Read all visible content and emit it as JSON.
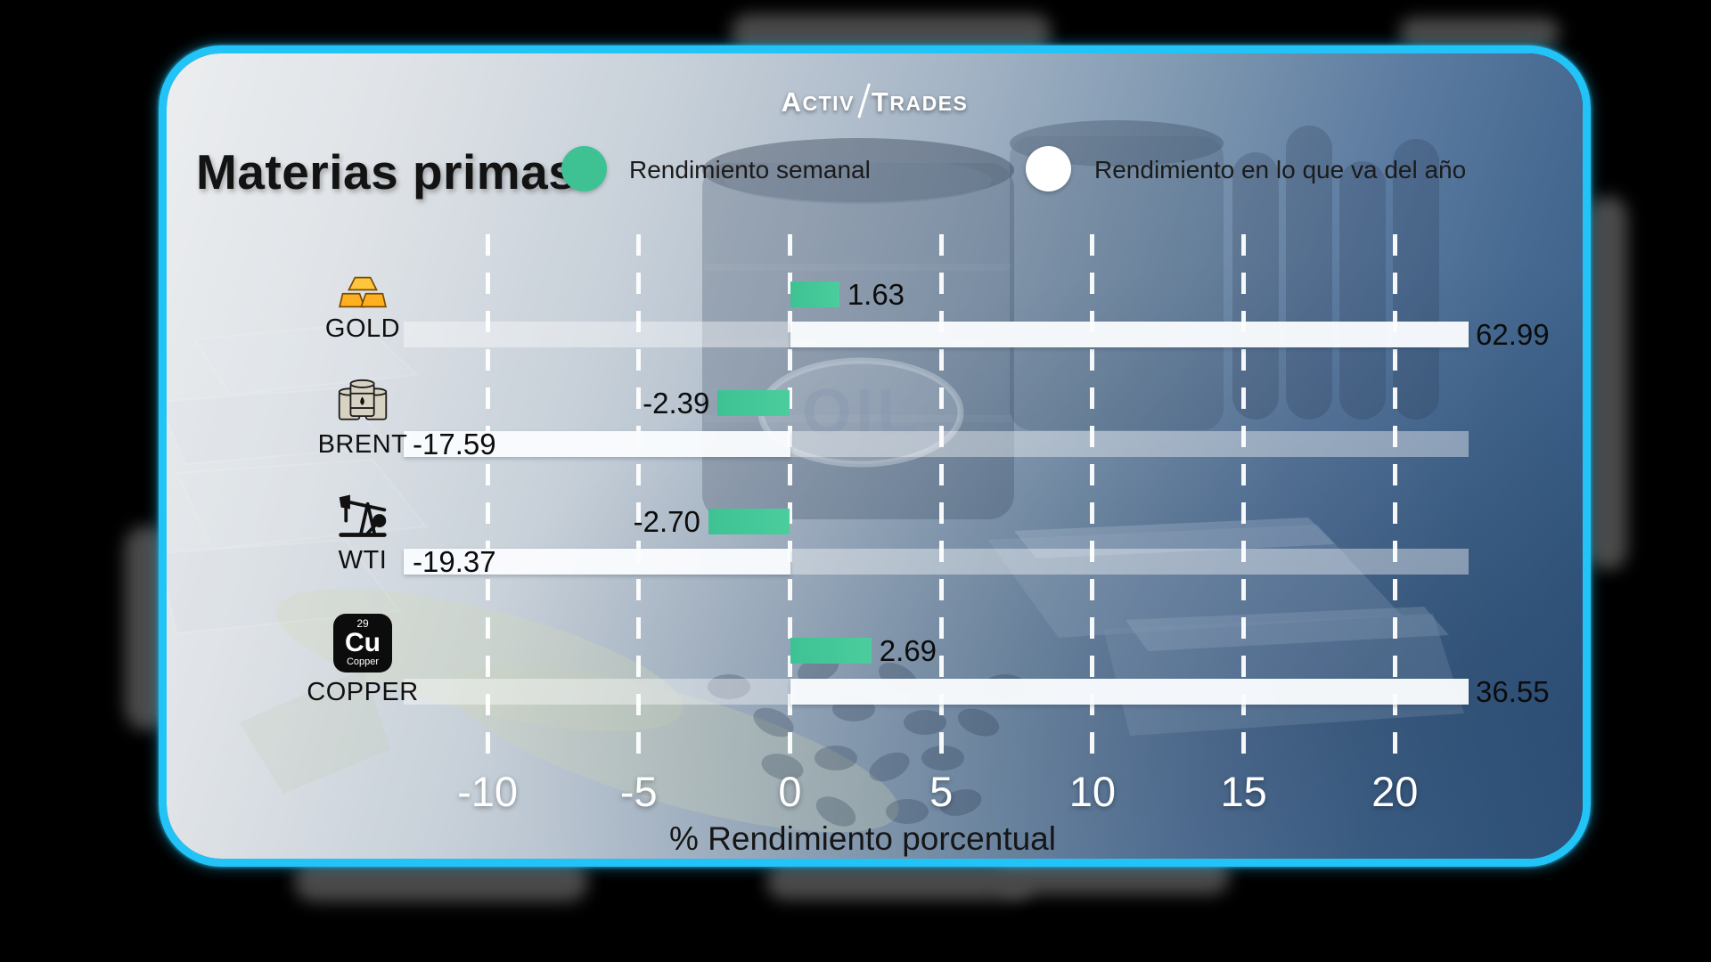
{
  "logo": {
    "a": "A",
    "ctiv": "CTIV",
    "t": "T",
    "rades": "RADES"
  },
  "header": {
    "title": "Materias primas"
  },
  "legend": {
    "weekly": {
      "label": "Rendimiento semanal",
      "color": "#3EC294"
    },
    "ytd": {
      "label": "Rendimiento en lo que va del año",
      "color": "#FFFFFF"
    }
  },
  "background": {
    "oil_label": "OIL"
  },
  "copper_chip": {
    "number": "29",
    "symbol": "Cu",
    "name": "Copper"
  },
  "chart_data": {
    "type": "bar",
    "orientation": "horizontal",
    "title": "Materias primas",
    "categories": [
      "GOLD",
      "BRENT",
      "WTI",
      "COPPER"
    ],
    "category_icons": [
      "gold-bars",
      "oil-barrels",
      "oil-pumpjack",
      "copper-element"
    ],
    "series": [
      {
        "name": "Rendimiento semanal",
        "color": "#3EC294",
        "values": [
          1.63,
          -2.39,
          -2.7,
          2.69
        ]
      },
      {
        "name": "Rendimiento en lo que va del año",
        "color": "#F4F7FA",
        "values": [
          62.99,
          -17.59,
          -19.37,
          36.55
        ]
      }
    ],
    "xlabel": "% Rendimiento porcentual",
    "x_ticks": [
      -10,
      -5,
      0,
      5,
      10,
      15,
      20
    ],
    "xlim_visible": [
      -12.8,
      22.4
    ],
    "grid": "dashed-white-vertical",
    "legend_position": "top",
    "value_labels": "2dp"
  }
}
